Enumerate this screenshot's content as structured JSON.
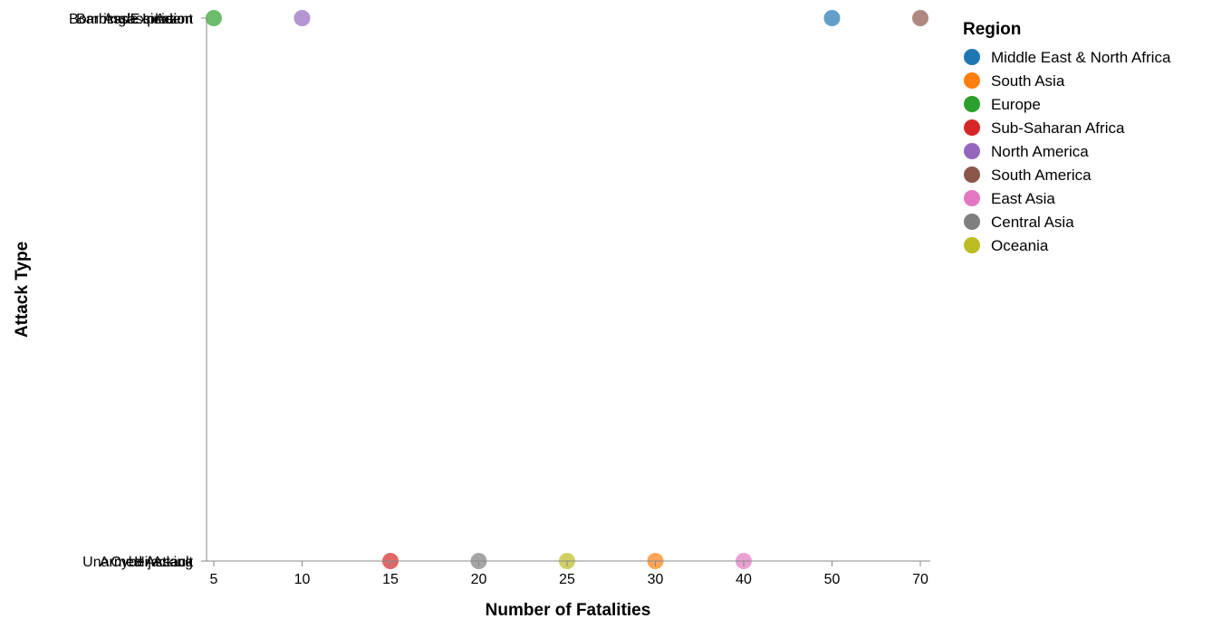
{
  "chart_data": {
    "type": "scatter",
    "xlabel": "Number of Fatalities",
    "ylabel": "Attack Type",
    "x_ticks": [
      "5",
      "10",
      "15",
      "20",
      "25",
      "30",
      "40",
      "50",
      "70"
    ],
    "y_ticks_top": [
      "Bombing/Explosion",
      "Barricade Incident",
      "Arson",
      "Assassination"
    ],
    "y_ticks_bottom": [
      "Armed Assault",
      "Cyber Attack",
      "Hijacking",
      "Unarmed Assault"
    ],
    "grid": false,
    "legend": {
      "title": "Region",
      "placement": "top-right",
      "entries": [
        {
          "label": "Middle East & North Africa",
          "color": "#1f77b4"
        },
        {
          "label": "South Asia",
          "color": "#ff7f0e"
        },
        {
          "label": "Europe",
          "color": "#2ca02c"
        },
        {
          "label": "Sub-Saharan Africa",
          "color": "#d62728"
        },
        {
          "label": "North America",
          "color": "#9467bd"
        },
        {
          "label": "South America",
          "color": "#8c564b"
        },
        {
          "label": "East Asia",
          "color": "#e377c2"
        },
        {
          "label": "Central Asia",
          "color": "#7f7f7f"
        },
        {
          "label": "Oceania",
          "color": "#bcbd22"
        }
      ]
    },
    "points": [
      {
        "x": 50,
        "y": "top",
        "region": "Middle East & North Africa"
      },
      {
        "x": 30,
        "y": "bottom",
        "region": "South Asia"
      },
      {
        "x": 5,
        "y": "top",
        "region": "Europe"
      },
      {
        "x": 15,
        "y": "bottom",
        "region": "Sub-Saharan Africa"
      },
      {
        "x": 10,
        "y": "top",
        "region": "North America"
      },
      {
        "x": 70,
        "y": "top",
        "region": "South America"
      },
      {
        "x": 40,
        "y": "bottom",
        "region": "East Asia"
      },
      {
        "x": 20,
        "y": "bottom",
        "region": "Central Asia"
      },
      {
        "x": 25,
        "y": "bottom",
        "region": "Oceania"
      }
    ]
  }
}
